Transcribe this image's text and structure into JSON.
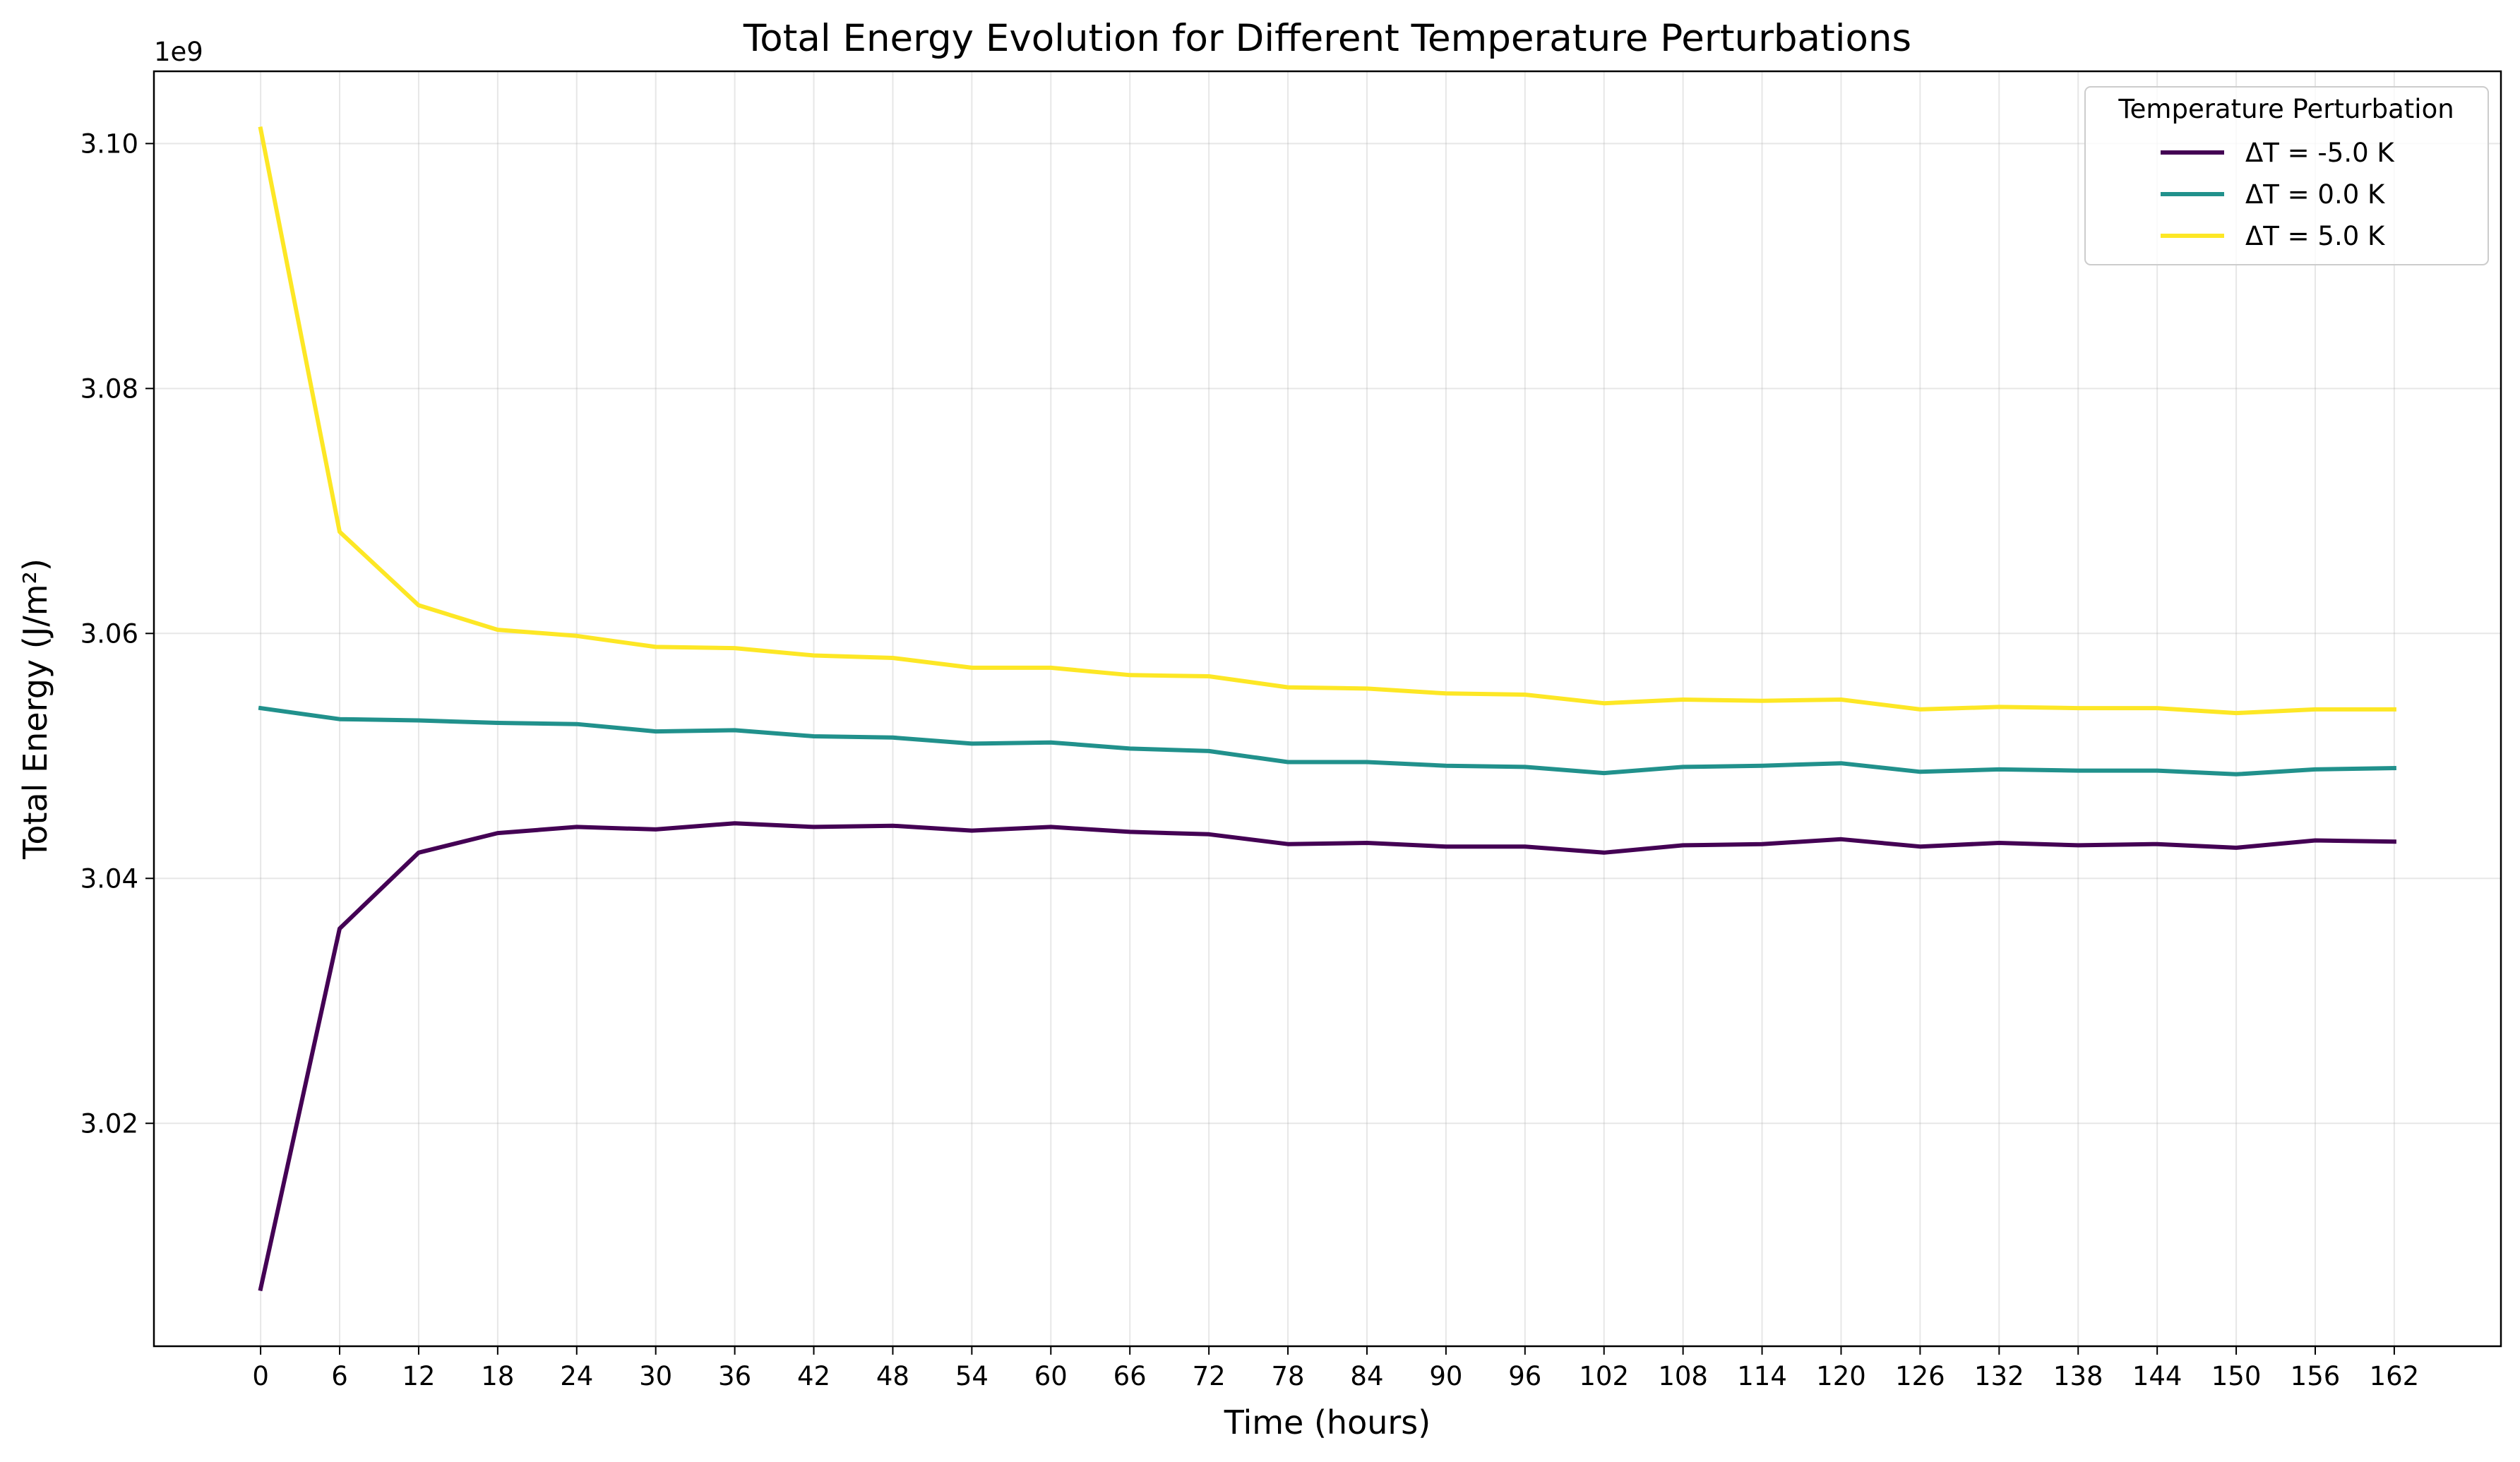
{
  "chart_data": {
    "type": "line",
    "title": "Total Energy Evolution for Different Temperature Perturbations",
    "xlabel": "Time (hours)",
    "ylabel": "Total Energy (J/m²)",
    "y_multiplier_label": "1e9",
    "x": [
      0,
      6,
      12,
      18,
      24,
      30,
      36,
      42,
      48,
      54,
      60,
      66,
      72,
      78,
      84,
      90,
      96,
      102,
      108,
      114,
      120,
      126,
      132,
      138,
      144,
      150,
      156,
      162
    ],
    "x_ticks": [
      "0",
      "6",
      "12",
      "18",
      "24",
      "30",
      "36",
      "42",
      "48",
      "54",
      "60",
      "66",
      "72",
      "78",
      "84",
      "90",
      "96",
      "102",
      "108",
      "114",
      "120",
      "126",
      "132",
      "138",
      "144",
      "150",
      "156",
      "162"
    ],
    "y_ticks": [
      "3.02",
      "3.04",
      "3.06",
      "3.08",
      "3.10"
    ],
    "y_tick_values": [
      3.02,
      3.04,
      3.06,
      3.08,
      3.1
    ],
    "xlim": [
      -8.1,
      170.1
    ],
    "ylim": [
      3.0018,
      3.1059
    ],
    "grid": true,
    "legend_position": "top-right",
    "legend_title": "Temperature Perturbation",
    "series": [
      {
        "name": "ΔT = -5.0 K",
        "color": "#440154",
        "values": [
          3.0065,
          3.0359,
          3.0421,
          3.0437,
          3.0442,
          3.044,
          3.0445,
          3.0442,
          3.0443,
          3.0439,
          3.0442,
          3.0438,
          3.0436,
          3.0428,
          3.0429,
          3.0426,
          3.0426,
          3.0421,
          3.0427,
          3.0428,
          3.0432,
          3.0426,
          3.0429,
          3.0427,
          3.0428,
          3.0425,
          3.0431,
          3.043
        ]
      },
      {
        "name": "ΔT = 0.0 K",
        "color": "#21918c",
        "values": [
          3.0539,
          3.053,
          3.0529,
          3.0527,
          3.0526,
          3.052,
          3.0521,
          3.0516,
          3.0515,
          3.051,
          3.0511,
          3.0506,
          3.0504,
          3.0495,
          3.0495,
          3.0492,
          3.0491,
          3.0486,
          3.0491,
          3.0492,
          3.0494,
          3.0487,
          3.0489,
          3.0488,
          3.0488,
          3.0485,
          3.0489,
          3.049
        ]
      },
      {
        "name": "ΔT = 5.0 K",
        "color": "#fde725",
        "values": [
          3.1012,
          3.0683,
          3.0623,
          3.0603,
          3.0598,
          3.0589,
          3.0588,
          3.0582,
          3.058,
          3.0572,
          3.0572,
          3.0566,
          3.0565,
          3.0556,
          3.0555,
          3.0551,
          3.055,
          3.0543,
          3.0546,
          3.0545,
          3.0546,
          3.0538,
          3.054,
          3.0539,
          3.0539,
          3.0535,
          3.0538,
          3.0538
        ]
      }
    ]
  }
}
